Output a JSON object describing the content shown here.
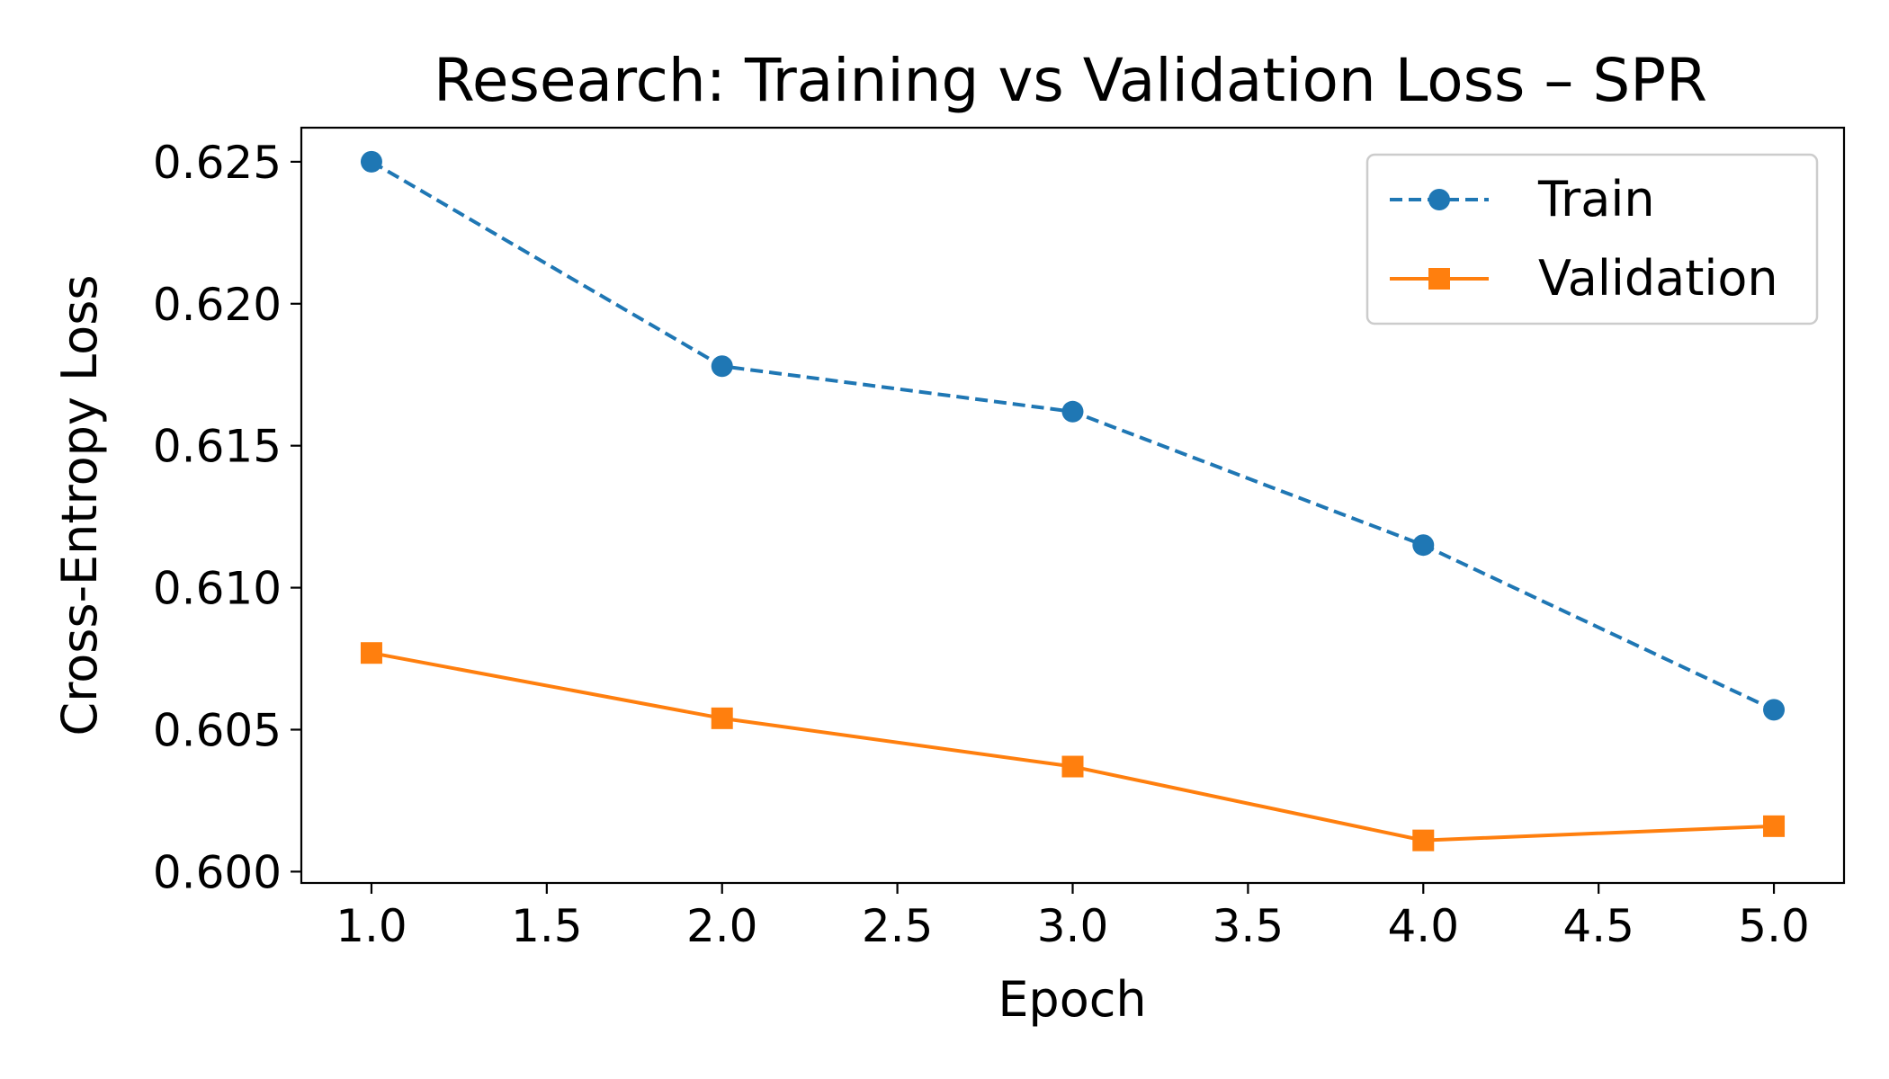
{
  "chart_data": {
    "type": "line",
    "title": "Research: Training vs Validation Loss – SPR",
    "xlabel": "Epoch",
    "ylabel": "Cross-Entropy Loss",
    "xlim": [
      0.8,
      5.2
    ],
    "ylim": [
      0.5996,
      0.6262
    ],
    "xticks": [
      1.0,
      1.5,
      2.0,
      2.5,
      3.0,
      3.5,
      4.0,
      4.5,
      5.0
    ],
    "xtick_labels": [
      "1.0",
      "1.5",
      "2.0",
      "2.5",
      "3.0",
      "3.5",
      "4.0",
      "4.5",
      "5.0"
    ],
    "yticks": [
      0.6,
      0.605,
      0.61,
      0.615,
      0.62,
      0.625
    ],
    "ytick_labels": [
      "0.600",
      "0.605",
      "0.610",
      "0.615",
      "0.620",
      "0.625"
    ],
    "grid": false,
    "legend": "upper right",
    "x": [
      1,
      2,
      3,
      4,
      5
    ],
    "series": [
      {
        "name": "Train",
        "values": [
          0.625,
          0.6178,
          0.6162,
          0.6115,
          0.6057
        ],
        "color": "#1f77b4",
        "linestyle": "dashed",
        "marker": "circle"
      },
      {
        "name": "Validation",
        "values": [
          0.6077,
          0.6054,
          0.6037,
          0.6011,
          0.6016
        ],
        "color": "#ff7f0e",
        "linestyle": "solid",
        "marker": "square"
      }
    ]
  }
}
